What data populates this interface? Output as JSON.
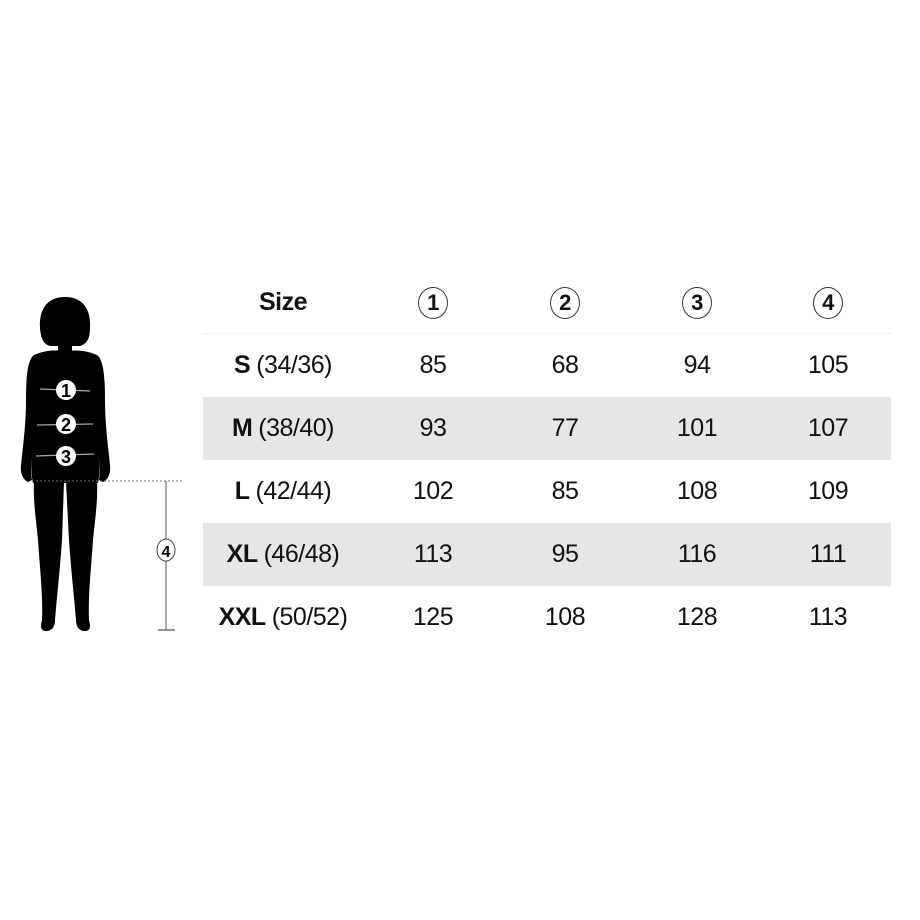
{
  "figure": {
    "markers": [
      "1",
      "2",
      "3"
    ],
    "length_marker": "4"
  },
  "table": {
    "header": {
      "size": "Size",
      "columns": [
        "1",
        "2",
        "3",
        "4"
      ]
    },
    "rows": [
      {
        "size": "S",
        "eu": "(34/36)",
        "values": [
          "85",
          "68",
          "94",
          "105"
        ]
      },
      {
        "size": "M",
        "eu": "(38/40)",
        "values": [
          "93",
          "77",
          "101",
          "107"
        ]
      },
      {
        "size": "L",
        "eu": "(42/44)",
        "values": [
          "102",
          "85",
          "108",
          "109"
        ]
      },
      {
        "size": "XL",
        "eu": "(46/48)",
        "values": [
          "113",
          "95",
          "116",
          "111"
        ]
      },
      {
        "size": "XXL",
        "eu": "(50/52)",
        "values": [
          "125",
          "108",
          "128",
          "113"
        ]
      }
    ]
  },
  "colors": {
    "shade": "#e6e6e6",
    "silhouette": "#000000"
  }
}
